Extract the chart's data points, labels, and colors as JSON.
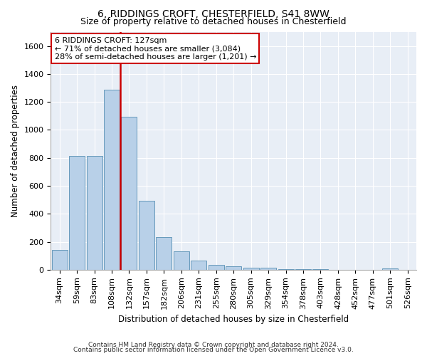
{
  "title1": "6, RIDDINGS CROFT, CHESTERFIELD, S41 8WW",
  "title2": "Size of property relative to detached houses in Chesterfield",
  "xlabel": "Distribution of detached houses by size in Chesterfield",
  "ylabel": "Number of detached properties",
  "categories": [
    "34sqm",
    "59sqm",
    "83sqm",
    "108sqm",
    "132sqm",
    "157sqm",
    "182sqm",
    "206sqm",
    "231sqm",
    "255sqm",
    "280sqm",
    "305sqm",
    "329sqm",
    "354sqm",
    "378sqm",
    "403sqm",
    "428sqm",
    "452sqm",
    "477sqm",
    "501sqm",
    "526sqm"
  ],
  "values": [
    140,
    815,
    815,
    1285,
    1095,
    495,
    235,
    130,
    65,
    35,
    27,
    15,
    13,
    5,
    5,
    5,
    0,
    0,
    0,
    10,
    0
  ],
  "bar_color": "#b8d0e8",
  "bar_edgecolor": "#6699bb",
  "vline_idx": 4,
  "vline_color": "#cc0000",
  "annotation_line1": "6 RIDDINGS CROFT: 127sqm",
  "annotation_line2": "← 71% of detached houses are smaller (3,084)",
  "annotation_line3": "28% of semi-detached houses are larger (1,201) →",
  "annotation_box_color": "#cc0000",
  "ylim": [
    0,
    1700
  ],
  "yticks": [
    0,
    200,
    400,
    600,
    800,
    1000,
    1200,
    1400,
    1600
  ],
  "bg_color": "#e8eef6",
  "footer1": "Contains HM Land Registry data © Crown copyright and database right 2024.",
  "footer2": "Contains public sector information licensed under the Open Government Licence v3.0.",
  "title1_fontsize": 10,
  "title2_fontsize": 9,
  "xlabel_fontsize": 8.5,
  "ylabel_fontsize": 8.5,
  "tick_fontsize": 8,
  "annotation_fontsize": 8,
  "footer_fontsize": 6.5
}
